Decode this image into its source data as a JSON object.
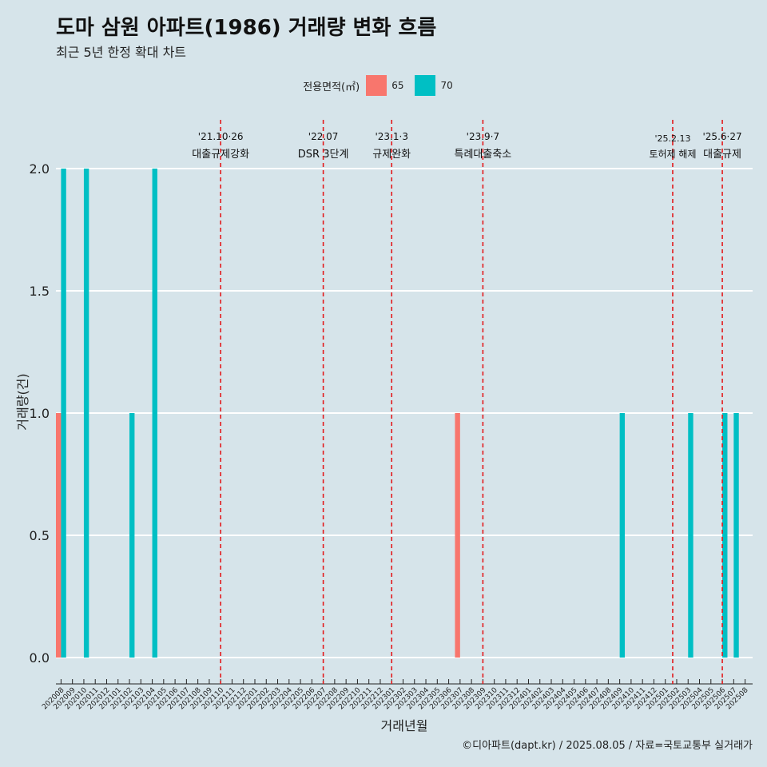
{
  "colors": {
    "background": "#d6e4ea",
    "s65": "#f8766d",
    "s70": "#00bfc4",
    "event_line": "#e31a1c",
    "grid": "#ffffff"
  },
  "header": {
    "title": "도마 삼원 아파트(1986) 거래량 변화 흐름",
    "subtitle": "최근 5년 한정 확대 차트"
  },
  "legend": {
    "title": "전용면적(㎡)",
    "items": [
      "65",
      "70"
    ]
  },
  "footer": "©디아파트(dapt.kr) / 2025.08.05 / 자료=국토교통부 실거래가",
  "chart_data": {
    "type": "bar",
    "xlabel": "거래년월",
    "ylabel": "거래량(건)",
    "ylim": [
      0,
      2
    ],
    "yticks": [
      "0.0",
      "0.5",
      "1.0",
      "1.5",
      "2.0"
    ],
    "categories": [
      "202008",
      "202009",
      "202010",
      "202011",
      "202012",
      "202101",
      "202102",
      "202103",
      "202104",
      "202105",
      "202106",
      "202107",
      "202108",
      "202109",
      "202110",
      "202111",
      "202112",
      "202201",
      "202202",
      "202203",
      "202204",
      "202205",
      "202206",
      "202207",
      "202208",
      "202209",
      "202210",
      "202211",
      "202212",
      "202301",
      "202302",
      "202303",
      "202304",
      "202305",
      "202306",
      "202307",
      "202308",
      "202309",
      "202310",
      "202311",
      "202312",
      "202401",
      "202402",
      "202403",
      "202404",
      "202405",
      "202406",
      "202407",
      "202408",
      "202409",
      "202410",
      "202411",
      "202412",
      "202501",
      "202502",
      "202503",
      "202504",
      "202505",
      "202506",
      "202507",
      "202508"
    ],
    "series": [
      {
        "name": "65",
        "points": [
          {
            "x": "202008",
            "y": 1
          },
          {
            "x": "202307",
            "y": 1
          }
        ]
      },
      {
        "name": "70",
        "points": [
          {
            "x": "202008",
            "y": 2
          },
          {
            "x": "202010",
            "y": 2
          },
          {
            "x": "202102",
            "y": 1
          },
          {
            "x": "202104",
            "y": 2
          },
          {
            "x": "202409",
            "y": 1
          },
          {
            "x": "202503",
            "y": 1
          },
          {
            "x": "202506",
            "y": 1
          },
          {
            "x": "202507",
            "y": 1
          }
        ]
      }
    ],
    "events": [
      {
        "x": "202110",
        "date": "'21.10·26",
        "label": "대출규제강화"
      },
      {
        "x": "202207",
        "date": "'22.07",
        "label": "DSR 3단계"
      },
      {
        "x": "202301",
        "date": "'23.1·3",
        "label": "규제완화"
      },
      {
        "x": "202309",
        "date": "'23.9·7",
        "label": "특례대출축소"
      },
      {
        "x": "202502",
        "date": "'25.2.13",
        "label": "토허제 해제"
      },
      {
        "x": "202506",
        "date": "'25.6·27",
        "label": "대출규제"
      }
    ],
    "grid": true,
    "legend_position": "top"
  }
}
